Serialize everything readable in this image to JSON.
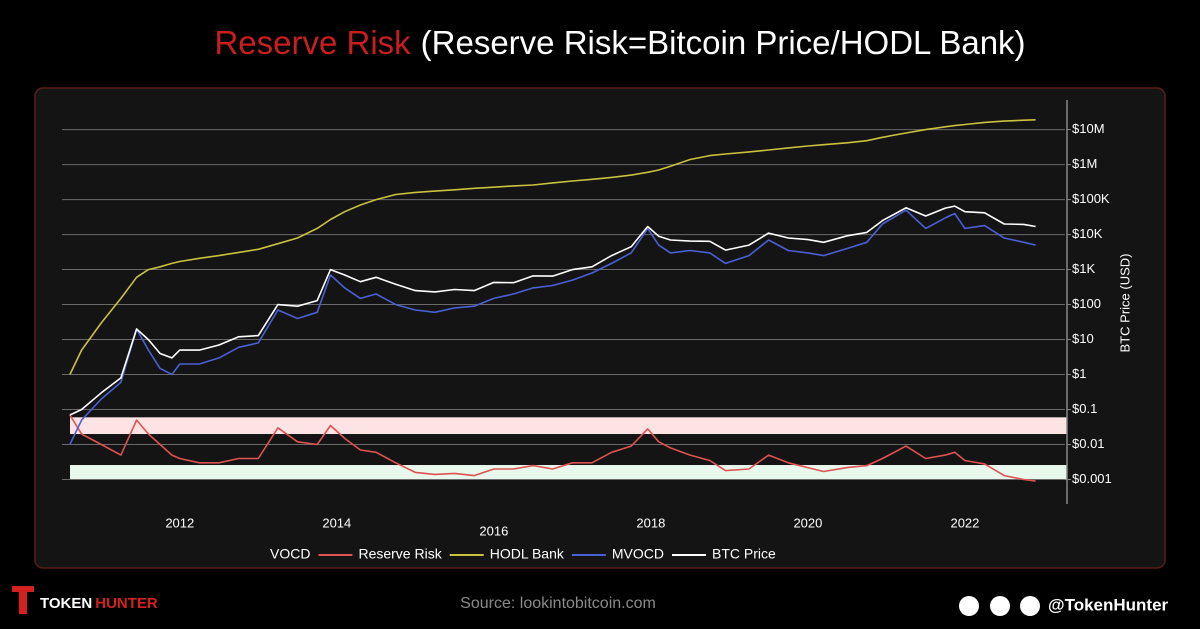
{
  "chart_data": {
    "type": "line",
    "title": "Reserve Risk",
    "subtitle": "(Reserve Risk=Bitcoin Price/HODL Bank)",
    "y_label": "BTC Price (USD)",
    "log_y": true,
    "grid": true,
    "legend": "bottom",
    "x": [
      2010.6,
      2010.75,
      2011.0,
      2011.25,
      2011.45,
      2011.6,
      2011.75,
      2011.9,
      2012.0,
      2012.25,
      2012.5,
      2012.75,
      2013.0,
      2013.25,
      2013.5,
      2013.75,
      2013.92,
      2014.1,
      2014.3,
      2014.5,
      2014.75,
      2015.0,
      2015.25,
      2015.5,
      2015.75,
      2016.0,
      2016.25,
      2016.5,
      2016.75,
      2017.0,
      2017.25,
      2017.5,
      2017.75,
      2017.96,
      2018.1,
      2018.25,
      2018.5,
      2018.75,
      2018.95,
      2019.25,
      2019.5,
      2019.75,
      2020.0,
      2020.2,
      2020.5,
      2020.75,
      2020.95,
      2021.25,
      2021.5,
      2021.75,
      2021.87,
      2022.0,
      2022.25,
      2022.5,
      2022.75,
      2022.9
    ],
    "xlim": [
      2010.5,
      2023.3
    ],
    "xticks": [
      2012,
      2014,
      2016,
      2018,
      2020,
      2022
    ],
    "ylim": [
      0.0002,
      70000000
    ],
    "yticks": [
      {
        "value": 0.001,
        "label": "$0.001"
      },
      {
        "value": 0.01,
        "label": "$0.01"
      },
      {
        "value": 0.1,
        "label": "$0.1"
      },
      {
        "value": 1,
        "label": "$1"
      },
      {
        "value": 10,
        "label": "$10"
      },
      {
        "value": 100,
        "label": "$100"
      },
      {
        "value": 1000,
        "label": "$1K"
      },
      {
        "value": 10000,
        "label": "$10K"
      },
      {
        "value": 100000,
        "label": "$100K"
      },
      {
        "value": 1000000,
        "label": "$1M"
      },
      {
        "value": 10000000,
        "label": "$10M"
      }
    ],
    "bands": [
      {
        "range": [
          0.02,
          0.06
        ],
        "color": "#fde3e3"
      },
      {
        "range": [
          0.001,
          0.0026
        ],
        "color": "#e8f8ec"
      }
    ],
    "series": [
      {
        "name": "VOCD",
        "values": [
          null,
          null,
          null,
          null,
          null,
          null,
          null,
          null,
          null,
          null,
          null,
          null,
          null,
          null,
          null,
          null,
          null,
          null,
          null,
          null,
          null,
          null,
          null,
          null,
          null,
          null,
          null,
          null,
          null,
          null,
          null,
          null,
          null,
          null,
          null,
          null,
          null,
          null,
          null,
          null,
          null,
          null,
          null,
          null,
          null,
          null,
          null,
          null,
          null,
          null,
          null,
          null,
          null,
          null,
          null,
          null
        ]
      },
      {
        "name": "Reserve Risk",
        "color": "#e05252",
        "values": [
          0.07,
          0.02,
          0.01,
          0.005,
          0.05,
          0.02,
          0.01,
          0.005,
          0.004,
          0.003,
          0.003,
          0.004,
          0.004,
          0.03,
          0.012,
          0.01,
          0.035,
          0.015,
          0.007,
          0.006,
          0.003,
          0.0016,
          0.0014,
          0.0015,
          0.0013,
          0.002,
          0.002,
          0.0025,
          0.002,
          0.003,
          0.003,
          0.006,
          0.009,
          0.028,
          0.012,
          0.008,
          0.005,
          0.0035,
          0.0018,
          0.002,
          0.005,
          0.003,
          0.0022,
          0.0017,
          0.0022,
          0.0025,
          0.004,
          0.009,
          0.004,
          0.005,
          0.006,
          0.0035,
          0.0028,
          0.0013,
          0.001,
          0.0009
        ]
      },
      {
        "name": "HODL Bank",
        "color": "#c9c23e",
        "values": [
          1,
          5,
          30,
          150,
          600,
          1000,
          1200,
          1500,
          1700,
          2100,
          2500,
          3100,
          3800,
          5500,
          8000,
          15000,
          27000,
          45000,
          70000,
          100000,
          140000,
          160000,
          175000,
          190000,
          210000,
          225000,
          245000,
          260000,
          300000,
          340000,
          380000,
          430000,
          500000,
          600000,
          700000,
          900000,
          1400000,
          1800000,
          2000000,
          2300000,
          2600000,
          3000000,
          3400000,
          3700000,
          4200000,
          4800000,
          6000000,
          8000000,
          10000000,
          12000000,
          13000000,
          14000000,
          16000000,
          17500000,
          18500000,
          19000000
        ]
      },
      {
        "name": "MVOCD",
        "color": "#4b60d4",
        "values": [
          0.01,
          0.05,
          0.2,
          0.6,
          20,
          5,
          1.5,
          1,
          2,
          2,
          3,
          6,
          8,
          70,
          40,
          60,
          700,
          300,
          150,
          200,
          100,
          70,
          60,
          80,
          90,
          150,
          200,
          300,
          350,
          500,
          800,
          1500,
          3000,
          15000,
          5000,
          3000,
          3500,
          3000,
          1500,
          2500,
          7000,
          3500,
          3000,
          2500,
          4000,
          6000,
          20000,
          50000,
          15000,
          30000,
          40000,
          15000,
          18000,
          8000,
          6000,
          5000
        ]
      },
      {
        "name": "BTC Price",
        "color": "#ffffff",
        "values": [
          0.07,
          0.1,
          0.3,
          0.8,
          20,
          10,
          4,
          3,
          5,
          5,
          7,
          12,
          13,
          100,
          90,
          130,
          1000,
          700,
          450,
          600,
          380,
          250,
          230,
          270,
          250,
          430,
          420,
          660,
          650,
          1000,
          1200,
          2500,
          4500,
          17000,
          9000,
          7000,
          6500,
          6400,
          3600,
          5000,
          11000,
          8000,
          7200,
          6000,
          9200,
          11500,
          25000,
          58000,
          34000,
          57000,
          65000,
          45000,
          42000,
          20000,
          19500,
          17000
        ]
      }
    ]
  },
  "footer": {
    "brand_left": "TOKEN",
    "brand_right": "HUNTER",
    "source": "Source: lookintobitcoin.com",
    "handle": "@TokenHunter"
  }
}
